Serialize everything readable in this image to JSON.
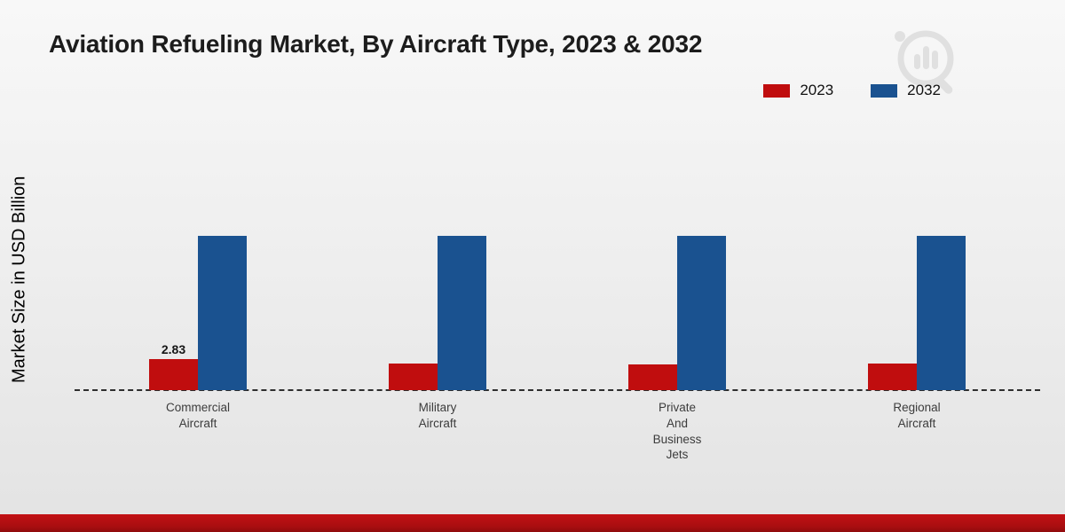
{
  "colors": {
    "series_2023": "#c00d0e",
    "series_2032": "#1a5290",
    "footer_band": "#b01013",
    "baseline": "#2e2e2e"
  },
  "watermark": {
    "icon": "brand-bar-chart-magnifier",
    "color": "#cfcfcf"
  },
  "chart_data": {
    "type": "bar",
    "title": "Aviation Refueling Market, By Aircraft Type, 2023 & 2032",
    "xlabel": "",
    "ylabel": "Market Size in USD Billion",
    "categories": [
      "Commercial Aircraft",
      "Military Aircraft",
      "Private And Business Jets",
      "Regional Aircraft"
    ],
    "category_lines": [
      [
        "Commercial",
        "Aircraft"
      ],
      [
        "Military",
        "Aircraft"
      ],
      [
        "Private",
        "And",
        "Business",
        "Jets"
      ],
      [
        "Regional",
        "Aircraft"
      ]
    ],
    "series": [
      {
        "name": "2023",
        "color": "#c00d0e",
        "values": [
          2.83,
          2.4,
          2.35,
          2.4
        ]
      },
      {
        "name": "2032",
        "color": "#1a5290",
        "values": [
          14,
          14,
          14,
          14
        ]
      }
    ],
    "data_labels": [
      "2.83",
      null,
      null,
      null
    ],
    "ylim": [
      0,
      16
    ],
    "grid": false,
    "axis_ticks": "none",
    "baseline_style": "dashed",
    "legend_position": "top-right"
  }
}
